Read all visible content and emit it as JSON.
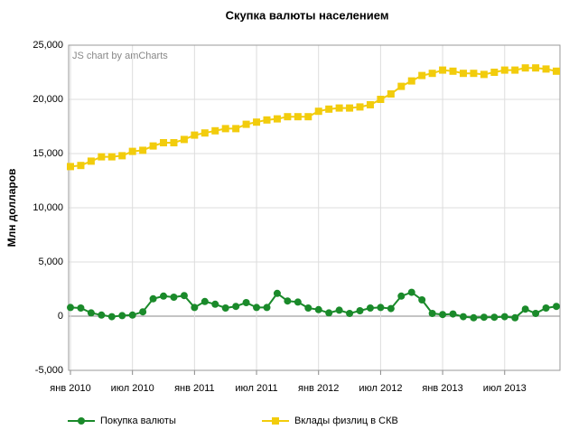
{
  "chart_data": {
    "type": "line",
    "title": "Скупка валюты населением",
    "ylabel": "Млн долларов",
    "watermark": "JS chart by amCharts",
    "categories": [
      "янв 2010",
      null,
      null,
      null,
      null,
      null,
      "июл 2010",
      null,
      null,
      null,
      null,
      null,
      "янв 2011",
      null,
      null,
      null,
      null,
      null,
      "июл 2011",
      null,
      null,
      null,
      null,
      null,
      "янв 2012",
      null,
      null,
      null,
      null,
      null,
      "июл 2012",
      null,
      null,
      null,
      null,
      null,
      "янв 2013",
      null,
      null,
      null,
      null,
      null,
      "июл 2013",
      null,
      null,
      null,
      null,
      null
    ],
    "series": [
      {
        "name": "Покупка валюты",
        "color": "#1a8a2a",
        "marker": "circle",
        "values": [
          800,
          750,
          300,
          100,
          -50,
          50,
          100,
          400,
          1600,
          1850,
          1750,
          1900,
          800,
          1350,
          1100,
          750,
          900,
          1250,
          800,
          800,
          2100,
          1400,
          1300,
          750,
          600,
          300,
          550,
          250,
          500,
          750,
          800,
          700,
          1850,
          2200,
          1500,
          250,
          150,
          200,
          -50,
          -150,
          -100,
          -100,
          -50,
          -150,
          650,
          250,
          750,
          900
        ]
      },
      {
        "name": "Вклады физлиц в СКВ",
        "color": "#f2cc0c",
        "marker": "square",
        "values": [
          13800,
          13900,
          14300,
          14700,
          14700,
          14800,
          15200,
          15300,
          15700,
          16000,
          16000,
          16300,
          16700,
          16900,
          17100,
          17300,
          17300,
          17700,
          17900,
          18100,
          18200,
          18400,
          18400,
          18400,
          18900,
          19100,
          19200,
          19200,
          19300,
          19500,
          20000,
          20500,
          21200,
          21700,
          22200,
          22400,
          22700,
          22600,
          22400,
          22400,
          22300,
          22500,
          22700,
          22700,
          22900,
          22900,
          22800,
          22600
        ]
      }
    ],
    "ylim": [
      -5000,
      25000
    ],
    "yticks": [
      {
        "value": -5000,
        "label": "-5,000"
      },
      0,
      {
        "value": 5000,
        "label": "5,000"
      },
      {
        "value": 10000,
        "label": "10,000"
      },
      {
        "value": 15000,
        "label": "15,000"
      },
      {
        "value": 20000,
        "label": "20,000"
      },
      {
        "value": 25000,
        "label": "25,000"
      }
    ],
    "grid": true,
    "legend": "bottom"
  }
}
